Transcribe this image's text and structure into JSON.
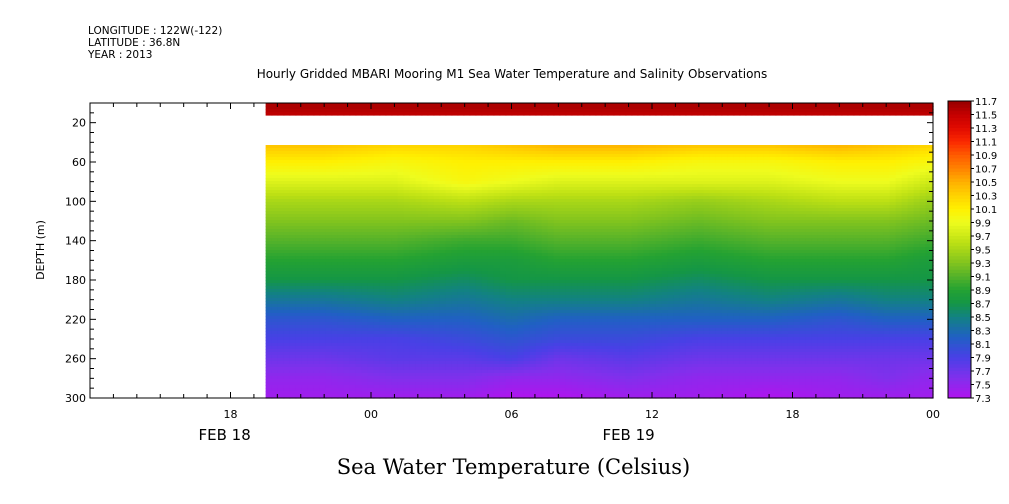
{
  "header": {
    "longitude": "LONGITUDE : 122W(-122)",
    "latitude": "LATITUDE : 36.8N",
    "year": "YEAR : 2013"
  },
  "chart_data": {
    "type": "heatmap",
    "title": "Hourly Gridded MBARI Mooring M1 Sea Water Temperature and Salinity Observations",
    "caption": "Sea Water Temperature (Celsius)",
    "ylabel": "DEPTH (m)",
    "xlabel": "",
    "x_unit": "hours since FEB 18 00:00",
    "xlim": [
      12,
      48
    ],
    "ylim": [
      300,
      0
    ],
    "x_ticks": [
      {
        "x": 18,
        "label": "18"
      },
      {
        "x": 24,
        "label": "00"
      },
      {
        "x": 30,
        "label": "06"
      },
      {
        "x": 36,
        "label": "12"
      },
      {
        "x": 42,
        "label": "18"
      },
      {
        "x": 48,
        "label": "00"
      }
    ],
    "date_labels": [
      {
        "x": 17.75,
        "label": "FEB 18"
      },
      {
        "x": 35,
        "label": "FEB 19"
      }
    ],
    "y_ticks": [
      20,
      60,
      100,
      140,
      180,
      220,
      260,
      300
    ],
    "data_start_x": 19.5,
    "missing_depth_band": [
      13,
      42
    ],
    "colorbar": [
      "11.7",
      "11.5",
      "11.3",
      "11.1",
      "10.9",
      "10.7",
      "10.5",
      "10.3",
      "10.1",
      "9.9",
      "9.7",
      "9.5",
      "9.3",
      "9.1",
      "8.9",
      "8.7",
      "8.5",
      "8.3",
      "8.1",
      "7.9",
      "7.7",
      "7.5",
      "7.3"
    ],
    "field": {
      "depths": [
        5,
        13,
        42,
        60,
        80,
        100,
        120,
        140,
        160,
        180,
        200,
        220,
        240,
        260,
        280,
        300
      ],
      "times": [
        19.5,
        22,
        25,
        28,
        30,
        32,
        35,
        38,
        41,
        44,
        46,
        48
      ],
      "values": [
        [
          11.6,
          11.6,
          11.6,
          11.6,
          11.6,
          11.6,
          11.6,
          11.6,
          11.6,
          11.6,
          11.6,
          11.6
        ],
        [
          11.5,
          11.5,
          11.5,
          11.5,
          11.5,
          11.5,
          11.5,
          11.5,
          11.5,
          11.5,
          11.5,
          11.5
        ],
        [
          10.4,
          10.4,
          10.3,
          10.3,
          10.4,
          10.5,
          10.5,
          10.4,
          10.4,
          10.5,
          10.4,
          10.3
        ],
        [
          10.1,
          10.1,
          10.0,
          10.1,
          10.1,
          10.1,
          10.1,
          10.0,
          10.0,
          10.1,
          10.1,
          10.0
        ],
        [
          9.8,
          9.8,
          9.8,
          10.0,
          9.9,
          9.8,
          9.8,
          9.8,
          9.8,
          9.9,
          9.9,
          9.7
        ],
        [
          9.5,
          9.5,
          9.5,
          9.6,
          9.5,
          9.5,
          9.5,
          9.4,
          9.5,
          9.6,
          9.6,
          9.4
        ],
        [
          9.3,
          9.3,
          9.3,
          9.3,
          9.2,
          9.3,
          9.3,
          9.2,
          9.3,
          9.3,
          9.3,
          9.2
        ],
        [
          9.1,
          9.1,
          9.1,
          9.0,
          9.0,
          9.1,
          9.1,
          9.0,
          9.1,
          9.1,
          9.1,
          9.0
        ],
        [
          8.9,
          8.9,
          8.9,
          8.8,
          8.8,
          8.9,
          8.9,
          8.8,
          8.9,
          8.9,
          8.9,
          8.8
        ],
        [
          8.7,
          8.7,
          8.7,
          8.6,
          8.7,
          8.7,
          8.7,
          8.6,
          8.7,
          8.7,
          8.7,
          8.7
        ],
        [
          8.4,
          8.4,
          8.5,
          8.4,
          8.5,
          8.5,
          8.5,
          8.4,
          8.5,
          8.4,
          8.5,
          8.5
        ],
        [
          8.1,
          8.1,
          8.2,
          8.2,
          8.3,
          8.2,
          8.2,
          8.2,
          8.2,
          8.1,
          8.2,
          8.2
        ],
        [
          7.9,
          7.9,
          7.9,
          8.0,
          8.1,
          8.0,
          8.0,
          7.9,
          7.9,
          7.9,
          7.9,
          7.9
        ],
        [
          7.7,
          7.7,
          7.8,
          7.8,
          7.9,
          7.7,
          7.8,
          7.7,
          7.7,
          7.7,
          7.7,
          7.7
        ],
        [
          7.5,
          7.5,
          7.6,
          7.6,
          7.5,
          7.5,
          7.6,
          7.5,
          7.5,
          7.5,
          7.6,
          7.5
        ],
        [
          7.4,
          7.4,
          7.4,
          7.4,
          7.3,
          7.3,
          7.4,
          7.4,
          7.3,
          7.4,
          7.4,
          7.4
        ]
      ]
    }
  }
}
